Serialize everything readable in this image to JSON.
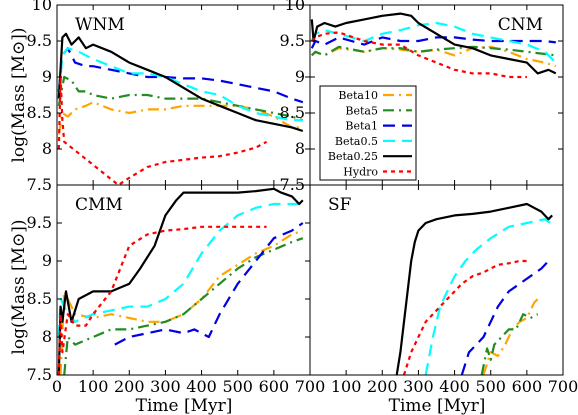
{
  "chart_data": {
    "type": "line",
    "ylabel": "log(Mass [M⊙])",
    "xlabel": "Time [Myr]",
    "xlim": [
      0,
      700
    ],
    "x_ticks": [
      "0",
      "100",
      "200",
      "300",
      "400",
      "500",
      "600",
      "700"
    ],
    "legend": {
      "placement": "right side of top-right panel",
      "entries": [
        "Beta10",
        "Beta5",
        "Beta1",
        "Beta0.5",
        "Beta0.25",
        "Hydro"
      ]
    },
    "styles": {
      "Beta10": {
        "color": "#ffa500",
        "dash": "11 5 2 5"
      },
      "Beta5": {
        "color": "#228b22",
        "dash": "11 5 2 5"
      },
      "Beta1": {
        "color": "#0000e6",
        "dash": "12 7"
      },
      "Beta0.5": {
        "color": "#00ffff",
        "dash": "12 7"
      },
      "Beta0.25": {
        "color": "#000000",
        "dash": ""
      },
      "Hydro": {
        "color": "#ff0000",
        "dash": "4 4"
      }
    },
    "panels": [
      {
        "title": "WNM",
        "ylim": [
          7.5,
          10
        ],
        "y_ticks": [
          "7.5",
          "8",
          "8.5",
          "9",
          "9.5",
          "10"
        ],
        "series": [
          {
            "name": "Beta10",
            "x": [
              5,
              15,
              30,
              50,
              80,
              100,
              150,
              200,
              250,
              300,
              350,
              400,
              450,
              500,
              550,
              600,
              650,
              680
            ],
            "y": [
              8.2,
              8.5,
              8.45,
              8.55,
              8.6,
              8.65,
              8.55,
              8.5,
              8.55,
              8.55,
              8.6,
              8.6,
              8.6,
              8.6,
              8.55,
              8.45,
              8.3,
              8.3
            ]
          },
          {
            "name": "Beta5",
            "x": [
              5,
              20,
              40,
              60,
              80,
              100,
              150,
              200,
              250,
              300,
              350,
              400,
              450,
              500,
              550,
              600,
              650,
              680
            ],
            "y": [
              8.6,
              9.0,
              8.95,
              8.8,
              8.8,
              8.75,
              8.7,
              8.75,
              8.75,
              8.7,
              8.7,
              8.7,
              8.65,
              8.6,
              8.55,
              8.5,
              8.45,
              8.4
            ]
          },
          {
            "name": "Beta1",
            "x": [
              5,
              15,
              30,
              50,
              80,
              100,
              150,
              200,
              250,
              300,
              350,
              400,
              450,
              500,
              550,
              600,
              650,
              680
            ],
            "y": [
              8.8,
              9.3,
              9.4,
              9.2,
              9.15,
              9.15,
              9.1,
              9.05,
              9.0,
              9.0,
              8.98,
              8.98,
              8.95,
              8.9,
              8.85,
              8.8,
              8.7,
              8.65
            ]
          },
          {
            "name": "Beta0.5",
            "x": [
              5,
              15,
              30,
              60,
              100,
              150,
              200,
              250,
              300,
              350,
              400,
              450,
              500,
              550,
              600,
              650,
              680
            ],
            "y": [
              8.8,
              9.3,
              9.4,
              9.35,
              9.25,
              9.15,
              9.05,
              9.05,
              9.0,
              8.9,
              8.8,
              8.75,
              8.6,
              8.5,
              8.45,
              8.4,
              8.4
            ]
          },
          {
            "name": "Beta0.25",
            "x": [
              5,
              15,
              25,
              40,
              60,
              80,
              100,
              150,
              200,
              250,
              300,
              350,
              400,
              450,
              500,
              550,
              600,
              650,
              680
            ],
            "y": [
              8.7,
              9.55,
              9.6,
              9.45,
              9.55,
              9.4,
              9.45,
              9.35,
              9.2,
              9.1,
              9.0,
              8.85,
              8.7,
              8.6,
              8.5,
              8.4,
              8.35,
              8.3,
              8.25
            ]
          },
          {
            "name": "Hydro",
            "x": [
              5,
              10,
              15,
              20,
              170,
              200,
              250,
              300,
              350,
              400,
              450,
              500,
              550,
              580
            ],
            "y": [
              8.0,
              9.0,
              8.4,
              8.1,
              7.5,
              7.6,
              7.75,
              7.82,
              7.85,
              7.88,
              7.9,
              7.95,
              8.02,
              8.1
            ]
          }
        ]
      },
      {
        "title": "CNM",
        "ylim": [
          7.5,
          10
        ],
        "y_ticks": [
          "7.5",
          "8",
          "8.5",
          "9",
          "9.5",
          "10"
        ],
        "series": [
          {
            "name": "Beta10",
            "x": [
              5,
              15,
              40,
              80,
              150,
              200,
              250,
              300,
              350,
              400,
              450,
              500,
              550,
              600,
              650,
              680
            ],
            "y": [
              9.3,
              9.35,
              9.3,
              9.4,
              9.35,
              9.4,
              9.38,
              9.35,
              9.38,
              9.3,
              9.4,
              9.42,
              9.35,
              9.25,
              9.2,
              9.15
            ]
          },
          {
            "name": "Beta5",
            "x": [
              5,
              15,
              40,
              80,
              150,
              200,
              250,
              300,
              350,
              400,
              450,
              500,
              550,
              600,
              650,
              680
            ],
            "y": [
              9.3,
              9.35,
              9.3,
              9.42,
              9.35,
              9.4,
              9.4,
              9.35,
              9.38,
              9.4,
              9.42,
              9.4,
              9.38,
              9.35,
              9.32,
              9.3
            ]
          },
          {
            "name": "Beta1",
            "x": [
              5,
              15,
              40,
              80,
              150,
              200,
              250,
              300,
              350,
              400,
              450,
              500,
              550,
              600,
              650,
              680
            ],
            "y": [
              9.4,
              9.5,
              9.45,
              9.55,
              9.45,
              9.55,
              9.5,
              9.5,
              9.55,
              9.55,
              9.52,
              9.5,
              9.5,
              9.5,
              9.5,
              9.48
            ]
          },
          {
            "name": "Beta0.5",
            "x": [
              5,
              15,
              40,
              80,
              150,
              200,
              250,
              300,
              350,
              400,
              450,
              500,
              550,
              600,
              650,
              680
            ],
            "y": [
              9.5,
              9.6,
              9.65,
              9.6,
              9.5,
              9.6,
              9.65,
              9.72,
              9.75,
              9.7,
              9.6,
              9.55,
              9.5,
              9.45,
              9.35,
              9.2
            ]
          },
          {
            "name": "Beta0.25",
            "x": [
              5,
              10,
              20,
              40,
              70,
              100,
              150,
              200,
              250,
              280,
              300,
              350,
              400,
              450,
              500,
              550,
              600,
              630,
              660,
              680
            ],
            "y": [
              9.8,
              9.5,
              9.7,
              9.75,
              9.7,
              9.75,
              9.8,
              9.85,
              9.88,
              9.85,
              9.75,
              9.6,
              9.45,
              9.4,
              9.3,
              9.25,
              9.2,
              9.05,
              9.1,
              9.05
            ]
          },
          {
            "name": "Hydro",
            "x": [
              5,
              15,
              40,
              80,
              150,
              200,
              250,
              300,
              350,
              400,
              450,
              500,
              550,
              600
            ],
            "y": [
              9.5,
              9.55,
              9.6,
              9.62,
              9.5,
              9.45,
              9.45,
              9.3,
              9.2,
              9.1,
              9.05,
              9.05,
              9.0,
              9.0
            ]
          }
        ]
      },
      {
        "title": "CMM",
        "ylim": [
          7.5,
          10
        ],
        "y_ticks": [
          "7.5",
          "8",
          "8.5",
          "9",
          "9.5"
        ],
        "series": [
          {
            "name": "Beta10",
            "x": [
              10,
              20,
              30,
              50,
              100,
              150,
              200,
              250,
              300,
              350,
              400,
              450,
              500,
              550,
              600,
              650,
              680
            ],
            "y": [
              7.5,
              8.6,
              8.5,
              8.3,
              8.25,
              8.3,
              8.25,
              8.2,
              8.2,
              8.3,
              8.5,
              8.8,
              8.95,
              9.1,
              9.2,
              9.35,
              9.4
            ]
          },
          {
            "name": "Beta5",
            "x": [
              20,
              30,
              50,
              100,
              150,
              200,
              250,
              300,
              350,
              400,
              450,
              500,
              550,
              600,
              650,
              680
            ],
            "y": [
              7.5,
              8.0,
              7.9,
              8.0,
              8.1,
              8.1,
              8.15,
              8.2,
              8.3,
              8.5,
              8.7,
              8.9,
              9.05,
              9.15,
              9.25,
              9.3
            ]
          },
          {
            "name": "Beta1",
            "x": [
              160,
              200,
              250,
              300,
              350,
              380,
              420,
              450,
              500,
              550,
              600,
              650,
              680
            ],
            "y": [
              7.9,
              8.0,
              8.05,
              8.1,
              8.05,
              8.1,
              8.0,
              8.3,
              8.7,
              9.0,
              9.3,
              9.4,
              9.5
            ]
          },
          {
            "name": "Beta0.5",
            "x": [
              5,
              10,
              30,
              50,
              100,
              150,
              200,
              250,
              300,
              350,
              400,
              450,
              500,
              550,
              600,
              650,
              680
            ],
            "y": [
              8.0,
              8.5,
              8.3,
              8.2,
              8.3,
              8.35,
              8.4,
              8.4,
              8.5,
              8.7,
              9.1,
              9.4,
              9.6,
              9.7,
              9.75,
              9.75,
              9.75
            ]
          },
          {
            "name": "Beta0.25",
            "x": [
              5,
              10,
              15,
              25,
              40,
              60,
              100,
              150,
              200,
              230,
              270,
              300,
              330,
              350,
              400,
              450,
              500,
              550,
              600,
              620,
              650,
              670,
              680
            ],
            "y": [
              7.5,
              8.4,
              8.2,
              8.6,
              8.2,
              8.5,
              8.6,
              8.6,
              8.7,
              8.9,
              9.2,
              9.6,
              9.8,
              9.9,
              9.9,
              9.9,
              9.9,
              9.92,
              9.95,
              9.9,
              9.85,
              9.75,
              9.8
            ]
          },
          {
            "name": "Hydro",
            "x": [
              5,
              10,
              15,
              30,
              50,
              80,
              100,
              150,
              200,
              250,
              300,
              350,
              400,
              450,
              500,
              550,
              580
            ],
            "y": [
              7.5,
              8.3,
              7.8,
              8.3,
              8.15,
              8.15,
              8.3,
              8.6,
              9.2,
              9.35,
              9.4,
              9.42,
              9.45,
              9.45,
              9.45,
              9.45,
              9.45
            ]
          }
        ]
      },
      {
        "title": "SF",
        "ylim": [
          7.5,
          10
        ],
        "y_ticks": [],
        "series": [
          {
            "name": "Beta10",
            "x": [
              480,
              500,
              520,
              540,
              560,
              580,
              600,
              620,
              630
            ],
            "y": [
              7.5,
              7.8,
              7.75,
              7.9,
              8.1,
              8.2,
              8.25,
              8.45,
              8.5
            ]
          },
          {
            "name": "Beta5",
            "x": [
              475,
              490,
              500,
              510,
              530,
              550,
              570,
              590,
              610,
              630
            ],
            "y": [
              7.5,
              7.85,
              7.7,
              7.9,
              8.0,
              8.1,
              8.1,
              8.3,
              8.25,
              8.3
            ]
          },
          {
            "name": "Beta1",
            "x": [
              420,
              440,
              460,
              480,
              500,
              520,
              550,
              580,
              610,
              640,
              660
            ],
            "y": [
              7.5,
              7.8,
              7.9,
              8.0,
              8.2,
              8.4,
              8.6,
              8.7,
              8.8,
              8.9,
              9.0
            ]
          },
          {
            "name": "Beta0.5",
            "x": [
              320,
              340,
              360,
              380,
              400,
              430,
              460,
              500,
              550,
              600,
              650,
              680
            ],
            "y": [
              7.5,
              8.0,
              8.4,
              8.6,
              8.8,
              9.0,
              9.15,
              9.3,
              9.45,
              9.5,
              9.55,
              9.45
            ]
          },
          {
            "name": "Beta0.25",
            "x": [
              240,
              250,
              260,
              270,
              280,
              290,
              300,
              320,
              350,
              400,
              450,
              500,
              550,
              600,
              620,
              640,
              660,
              670
            ],
            "y": [
              7.5,
              7.8,
              8.2,
              8.6,
              9.0,
              9.25,
              9.4,
              9.5,
              9.55,
              9.6,
              9.62,
              9.65,
              9.7,
              9.75,
              9.7,
              9.65,
              9.55,
              9.6
            ]
          },
          {
            "name": "Hydro",
            "x": [
              260,
              280,
              300,
              320,
              340,
              360,
              380,
              400,
              420,
              450,
              480,
              500,
              520,
              550,
              580,
              600
            ],
            "y": [
              7.5,
              7.8,
              8.0,
              8.2,
              8.3,
              8.4,
              8.5,
              8.6,
              8.7,
              8.8,
              8.85,
              8.9,
              8.95,
              8.97,
              9.0,
              9.0
            ]
          }
        ]
      }
    ]
  }
}
